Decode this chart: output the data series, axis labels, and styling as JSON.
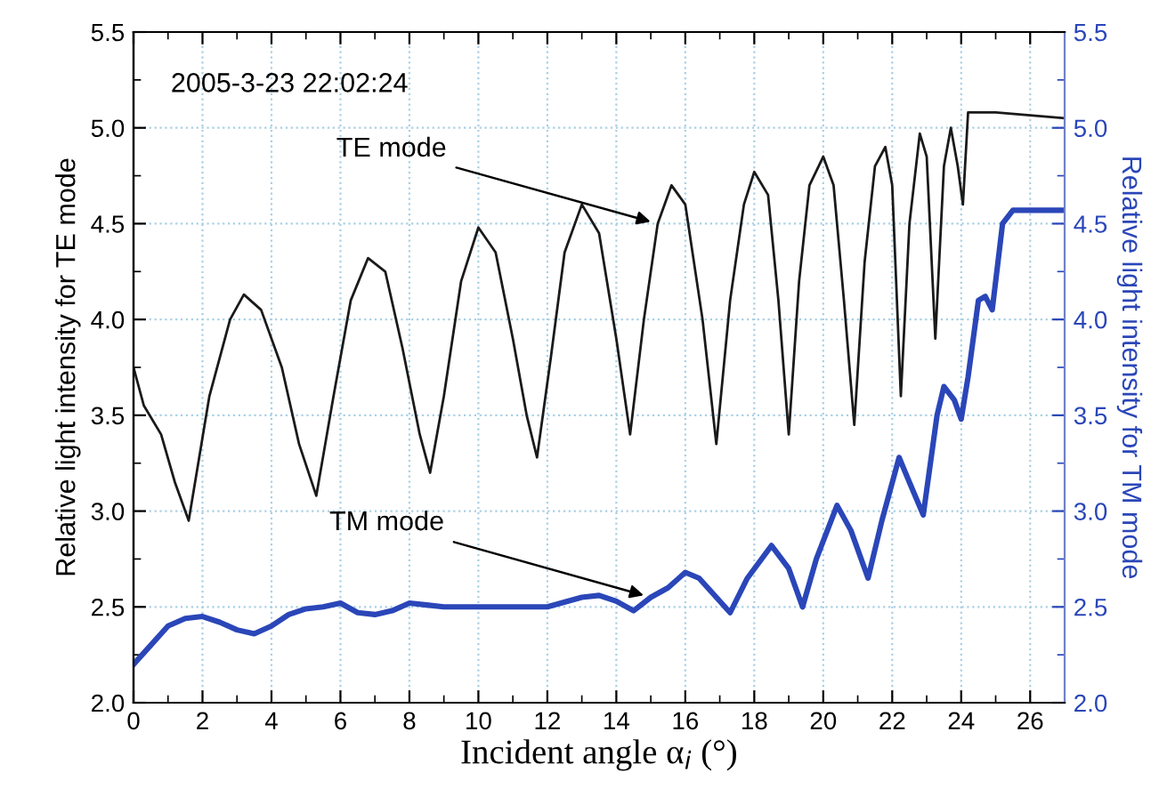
{
  "chart_data": {
    "type": "line",
    "xlabel": "Incident angle α$_{i}$ (°)",
    "ylabel": "Relative light intensity for TE mode",
    "y2label": "Relative light intensity for TM mode",
    "xlim": [
      0,
      27
    ],
    "xticks": [
      0,
      2,
      4,
      6,
      8,
      10,
      12,
      14,
      16,
      18,
      20,
      22,
      24,
      26
    ],
    "ylim": [
      2.0,
      5.5
    ],
    "yticks": [
      {
        "value": 2.0,
        "label": "2.0"
      },
      {
        "value": 2.5,
        "label": "2.5"
      },
      {
        "value": 3.0,
        "label": "3.0"
      },
      {
        "value": 3.5,
        "label": "3.5"
      },
      {
        "value": 4.0,
        "label": "4.0"
      },
      {
        "value": 4.5,
        "label": "4.5"
      },
      {
        "value": 5.0,
        "label": "5.0"
      },
      {
        "value": 5.5,
        "label": "5.5"
      }
    ],
    "y2lim": [
      2.0,
      5.5
    ],
    "y2ticks": [
      {
        "value": 2.0,
        "label": "2.0"
      },
      {
        "value": 2.5,
        "label": "2.5"
      },
      {
        "value": 3.0,
        "label": "3.0"
      },
      {
        "value": 3.5,
        "label": "3.5"
      },
      {
        "value": 4.0,
        "label": "4.0"
      },
      {
        "value": 4.5,
        "label": "4.5"
      },
      {
        "value": 5.0,
        "label": "5.0"
      },
      {
        "value": 5.5,
        "label": "5.5"
      }
    ],
    "grid": true,
    "marker": "none",
    "line_style": "solid",
    "series": [
      {
        "color": "#1a1a1a",
        "x": [
          0,
          0.3,
          0.8,
          1.2,
          1.6,
          2.2,
          2.8,
          3.2,
          3.7,
          4.3,
          4.8,
          5.3,
          5.8,
          6.3,
          6.8,
          7.3,
          7.8,
          8.3,
          8.6,
          9.0,
          9.5,
          10.0,
          10.5,
          11.0,
          11.4,
          11.7,
          12.1,
          12.5,
          13.0,
          13.5,
          14.0,
          14.4,
          14.8,
          15.2,
          15.6,
          16.0,
          16.5,
          16.9,
          17.3,
          17.7,
          18.0,
          18.4,
          18.7,
          19.0,
          19.3,
          19.6,
          20.0,
          20.3,
          20.6,
          20.9,
          21.2,
          21.5,
          21.8,
          22.0,
          22.25,
          22.5,
          22.8,
          23.0,
          23.25,
          23.5,
          23.7,
          23.9,
          24.05,
          24.2,
          25.0,
          27.0
        ],
        "values": [
          3.75,
          3.55,
          3.4,
          3.15,
          2.95,
          3.6,
          4.0,
          4.13,
          4.05,
          3.75,
          3.35,
          3.08,
          3.6,
          4.1,
          4.32,
          4.25,
          3.85,
          3.4,
          3.2,
          3.6,
          4.2,
          4.48,
          4.35,
          3.9,
          3.5,
          3.28,
          3.8,
          4.35,
          4.6,
          4.45,
          3.9,
          3.4,
          4.0,
          4.5,
          4.7,
          4.6,
          4.0,
          3.35,
          4.1,
          4.6,
          4.77,
          4.65,
          4.1,
          3.4,
          4.2,
          4.7,
          4.85,
          4.7,
          4.1,
          3.45,
          4.3,
          4.8,
          4.9,
          4.7,
          3.6,
          4.5,
          4.97,
          4.85,
          3.9,
          4.8,
          5.0,
          4.8,
          4.6,
          5.08,
          5.08,
          5.05
        ]
      },
      {
        "color": "#2a46b8",
        "axis": "y2",
        "x": [
          0,
          0.5,
          1.0,
          1.5,
          2.0,
          2.5,
          3.0,
          3.5,
          4.0,
          4.5,
          5.0,
          5.5,
          6.0,
          6.5,
          7.0,
          7.5,
          8.0,
          8.5,
          9.0,
          10.0,
          11.0,
          12.0,
          13.0,
          13.5,
          14.0,
          14.5,
          15.0,
          15.5,
          16.0,
          16.4,
          16.9,
          17.3,
          17.8,
          18.5,
          19.0,
          19.4,
          19.8,
          20.4,
          20.8,
          21.3,
          21.7,
          22.2,
          22.5,
          22.9,
          23.3,
          23.5,
          23.8,
          24.0,
          24.2,
          24.5,
          24.7,
          24.9,
          25.2,
          25.5,
          27.0
        ],
        "values": [
          2.2,
          2.3,
          2.4,
          2.44,
          2.45,
          2.42,
          2.38,
          2.36,
          2.4,
          2.46,
          2.49,
          2.5,
          2.52,
          2.47,
          2.46,
          2.48,
          2.52,
          2.51,
          2.5,
          2.5,
          2.5,
          2.5,
          2.55,
          2.56,
          2.53,
          2.48,
          2.55,
          2.6,
          2.68,
          2.65,
          2.55,
          2.47,
          2.65,
          2.82,
          2.7,
          2.5,
          2.75,
          3.03,
          2.9,
          2.65,
          2.95,
          3.28,
          3.15,
          2.98,
          3.5,
          3.65,
          3.58,
          3.48,
          3.7,
          4.1,
          4.12,
          4.05,
          4.5,
          4.57,
          4.57
        ]
      }
    ],
    "annotations": [
      "2005-3-23 22:02:24",
      {
        "text": "TE mode",
        "x": 15.2,
        "y": 4.5
      },
      {
        "text": "TM mode",
        "x": 15.0,
        "y": 2.55
      }
    ]
  }
}
